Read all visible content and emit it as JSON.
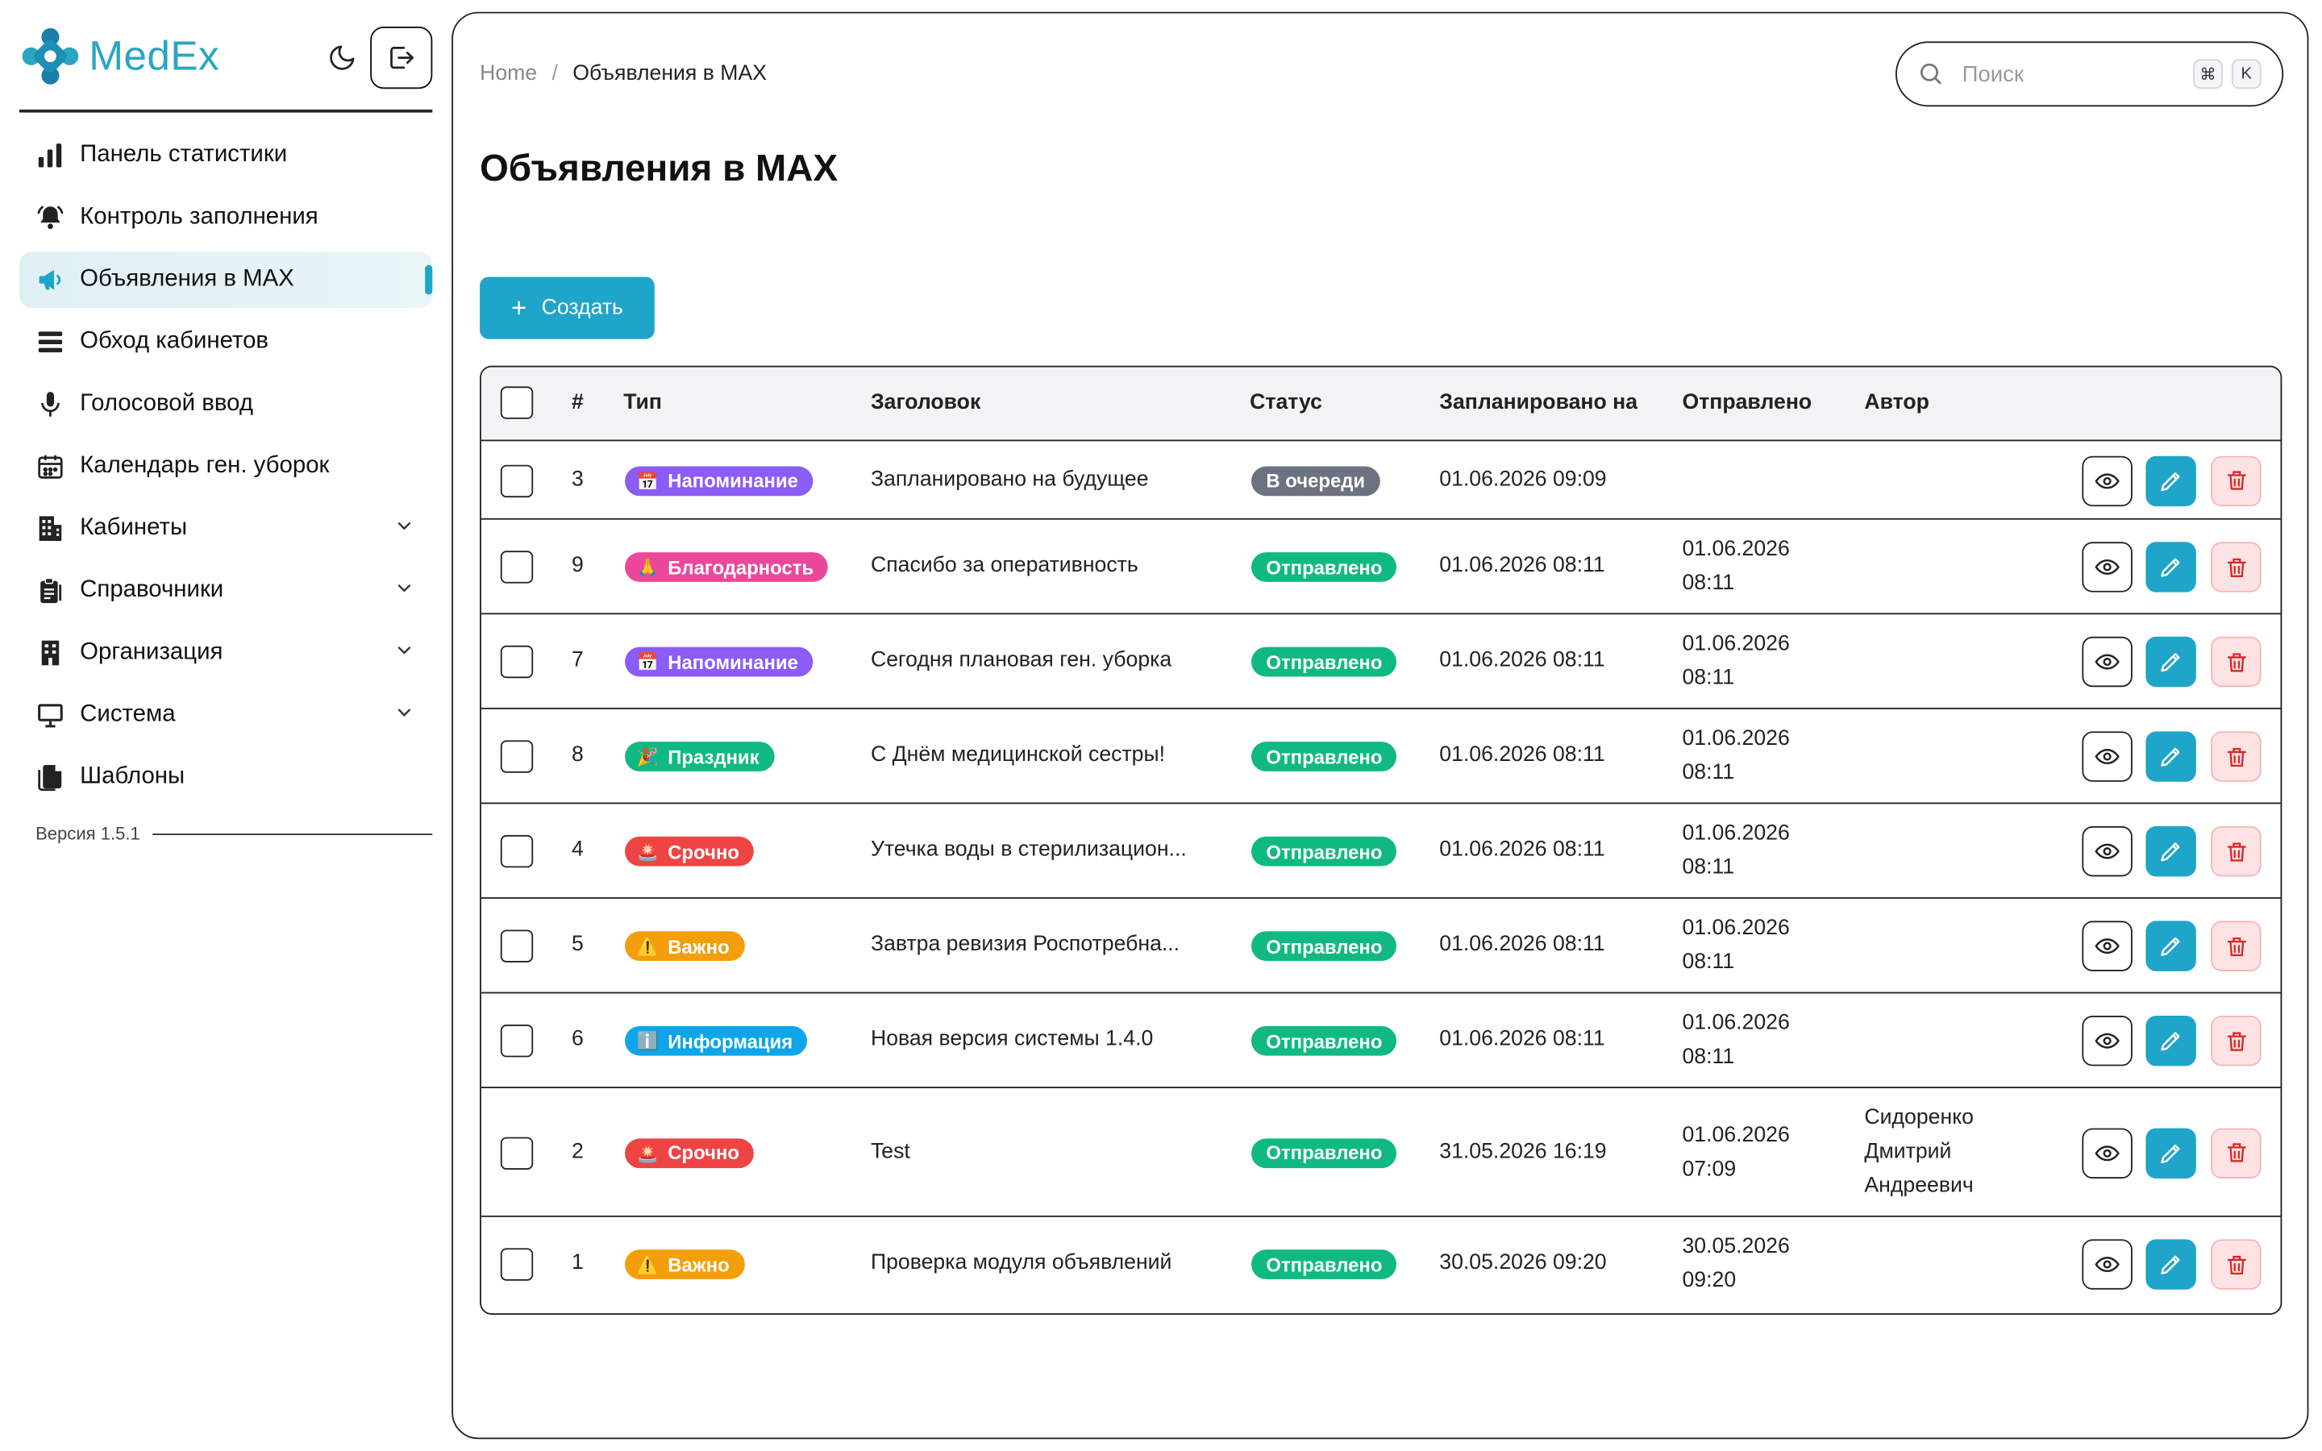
{
  "app": {
    "brand": "MedEx",
    "colors": {
      "accent": "#1fa5c9",
      "brand": "#2aa6c1"
    }
  },
  "sidebar": {
    "items": [
      {
        "label": "Панель статистики",
        "icon": "bar-chart-icon"
      },
      {
        "label": "Контроль заполнения",
        "icon": "bell-icon"
      },
      {
        "label": "Объявления в MAX",
        "icon": "megaphone-icon",
        "active": true
      },
      {
        "label": "Обход кабинетов",
        "icon": "layers-icon"
      },
      {
        "label": "Голосовой ввод",
        "icon": "microphone-icon"
      },
      {
        "label": "Календарь ген. уборок",
        "icon": "calendar-icon"
      },
      {
        "label": "Кабинеты",
        "icon": "building-icon",
        "expandable": true
      },
      {
        "label": "Справочники",
        "icon": "clipboard-icon",
        "expandable": true
      },
      {
        "label": "Организация",
        "icon": "office-icon",
        "expandable": true
      },
      {
        "label": "Система",
        "icon": "monitor-icon",
        "expandable": true
      },
      {
        "label": "Шаблоны",
        "icon": "copy-icon"
      }
    ],
    "version": "Версия 1.5.1"
  },
  "header": {
    "breadcrumb_home": "Home",
    "breadcrumb_sep": "/",
    "breadcrumb_current": "Объявления в MAX",
    "search_placeholder": "Поиск",
    "kbd_cmd": "⌘",
    "kbd_k": "K"
  },
  "page": {
    "title": "Объявления в MAX",
    "create_label": "Создать"
  },
  "table": {
    "columns": {
      "num": "#",
      "type": "Тип",
      "title": "Заголовок",
      "status": "Статус",
      "scheduled": "Запланировано на",
      "sent": "Отправлено",
      "author": "Автор"
    },
    "rows": [
      {
        "num": "3",
        "type": "Напоминание",
        "type_emoji": "📅",
        "type_color": "#8b5cf6",
        "title": "Запланировано на будущее",
        "status": "В очереди",
        "status_color": "#6b7280",
        "scheduled": "01.06.2026 09:09",
        "sent_date": "",
        "sent_time": "",
        "author": []
      },
      {
        "num": "9",
        "type": "Благодарность",
        "type_emoji": "🙏",
        "type_color": "#ec4899",
        "title": "Спасибо за оперативность",
        "status": "Отправлено",
        "status_color": "#10b981",
        "scheduled": "01.06.2026 08:11",
        "sent_date": "01.06.2026",
        "sent_time": "08:11",
        "author": []
      },
      {
        "num": "7",
        "type": "Напоминание",
        "type_emoji": "📅",
        "type_color": "#8b5cf6",
        "title": "Сегодня плановая ген. уборка",
        "status": "Отправлено",
        "status_color": "#10b981",
        "scheduled": "01.06.2026 08:11",
        "sent_date": "01.06.2026",
        "sent_time": "08:11",
        "author": []
      },
      {
        "num": "8",
        "type": "Праздник",
        "type_emoji": "🎉",
        "type_color": "#10b981",
        "title": "С Днём медицинской сестры!",
        "status": "Отправлено",
        "status_color": "#10b981",
        "scheduled": "01.06.2026 08:11",
        "sent_date": "01.06.2026",
        "sent_time": "08:11",
        "author": []
      },
      {
        "num": "4",
        "type": "Срочно",
        "type_emoji": "🚨",
        "type_color": "#ef4444",
        "title": "Утечка воды в стерилизацион...",
        "status": "Отправлено",
        "status_color": "#10b981",
        "scheduled": "01.06.2026 08:11",
        "sent_date": "01.06.2026",
        "sent_time": "08:11",
        "author": []
      },
      {
        "num": "5",
        "type": "Важно",
        "type_emoji": "⚠️",
        "type_color": "#f59e0b",
        "title": "Завтра ревизия Роспотребна...",
        "status": "Отправлено",
        "status_color": "#10b981",
        "scheduled": "01.06.2026 08:11",
        "sent_date": "01.06.2026",
        "sent_time": "08:11",
        "author": []
      },
      {
        "num": "6",
        "type": "Информация",
        "type_emoji": "ℹ️",
        "type_color": "#0ea5e9",
        "title": "Новая версия системы 1.4.0",
        "status": "Отправлено",
        "status_color": "#10b981",
        "scheduled": "01.06.2026 08:11",
        "sent_date": "01.06.2026",
        "sent_time": "08:11",
        "author": []
      },
      {
        "num": "2",
        "type": "Срочно",
        "type_emoji": "🚨",
        "type_color": "#ef4444",
        "title": "Test",
        "status": "Отправлено",
        "status_color": "#10b981",
        "scheduled": "31.05.2026 16:19",
        "sent_date": "01.06.2026",
        "sent_time": "07:09",
        "author": [
          "Сидоренко",
          "Дмитрий",
          "Андреевич"
        ]
      },
      {
        "num": "1",
        "type": "Важно",
        "type_emoji": "⚠️",
        "type_color": "#f59e0b",
        "title": "Проверка модуля объявлений",
        "status": "Отправлено",
        "status_color": "#10b981",
        "scheduled": "30.05.2026 09:20",
        "sent_date": "30.05.2026",
        "sent_time": "09:20",
        "author": []
      }
    ]
  }
}
